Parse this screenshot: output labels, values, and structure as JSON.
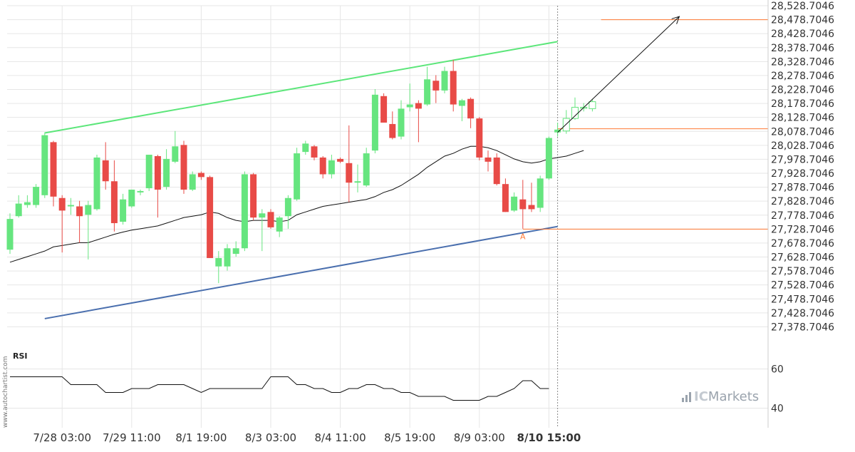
{
  "watermark": "www.autochartist.com",
  "brand": {
    "prefix": "IC",
    "name": "Markets"
  },
  "chart_data": {
    "type": "candlestick",
    "title": "",
    "ylabel": "",
    "xlabel": "",
    "price_ylim": [
      27328.7046,
      28528.7046
    ],
    "y_tick_labels": [
      "28,528.7046",
      "28,478.7046",
      "28,428.7046",
      "28,378.7046",
      "28,328.7046",
      "28,278.7046",
      "28,228.7046",
      "28,178.7046",
      "28,128.7046",
      "28,078.7046",
      "28,028.7046",
      "27,978.7046",
      "27,928.7046",
      "27,878.7046",
      "27,828.7046",
      "27,778.7046",
      "27,728.7046",
      "27,678.7046",
      "27,628.7046",
      "27,578.7046",
      "27,528.7046",
      "27,478.7046",
      "27,428.7046",
      "27,378.7046"
    ],
    "y_tick_values": [
      28528.7046,
      28478.7046,
      28428.7046,
      28378.7046,
      28328.7046,
      28278.7046,
      28228.7046,
      28178.7046,
      28128.7046,
      28078.7046,
      28028.7046,
      27978.7046,
      27928.7046,
      27878.7046,
      27828.7046,
      27778.7046,
      27728.7046,
      27678.7046,
      27628.7046,
      27578.7046,
      27528.7046,
      27478.7046,
      27428.7046,
      27378.7046
    ],
    "x_tick_labels": [
      {
        "label": "7/28 03:00",
        "index": 6,
        "bold": false
      },
      {
        "label": "7/29 11:00",
        "index": 14,
        "bold": false
      },
      {
        "label": "8/1 19:00",
        "index": 22,
        "bold": false
      },
      {
        "label": "8/3 03:00",
        "index": 30,
        "bold": false
      },
      {
        "label": "8/4 11:00",
        "index": 38,
        "bold": false
      },
      {
        "label": "8/5 19:00",
        "index": 46,
        "bold": false
      },
      {
        "label": "8/9 03:00",
        "index": 54,
        "bold": false
      },
      {
        "label": "8/10 15:00",
        "index": 62,
        "bold": true
      }
    ],
    "candles": [
      {
        "o": 27655,
        "h": 27785,
        "l": 27640,
        "c": 27765
      },
      {
        "o": 27775,
        "h": 27850,
        "l": 27770,
        "c": 27820
      },
      {
        "o": 27815,
        "h": 27850,
        "l": 27805,
        "c": 27825
      },
      {
        "o": 27815,
        "h": 27890,
        "l": 27805,
        "c": 27880
      },
      {
        "o": 27850,
        "h": 28075,
        "l": 27840,
        "c": 28065
      },
      {
        "o": 28040,
        "h": 28045,
        "l": 27810,
        "c": 27845
      },
      {
        "o": 27840,
        "h": 27850,
        "l": 27645,
        "c": 27795
      },
      {
        "o": 27810,
        "h": 27840,
        "l": 27780,
        "c": 27815
      },
      {
        "o": 27810,
        "h": 27830,
        "l": 27680,
        "c": 27775
      },
      {
        "o": 27780,
        "h": 27830,
        "l": 27620,
        "c": 27815
      },
      {
        "o": 27800,
        "h": 27995,
        "l": 27795,
        "c": 27985
      },
      {
        "o": 27975,
        "h": 28040,
        "l": 27870,
        "c": 27900
      },
      {
        "o": 27900,
        "h": 27975,
        "l": 27720,
        "c": 27750
      },
      {
        "o": 27755,
        "h": 27855,
        "l": 27745,
        "c": 27835
      },
      {
        "o": 27810,
        "h": 27870,
        "l": 27805,
        "c": 27870
      },
      {
        "o": 27860,
        "h": 27870,
        "l": 27850,
        "c": 27865
      },
      {
        "o": 27875,
        "h": 27995,
        "l": 27865,
        "c": 27995
      },
      {
        "o": 27990,
        "h": 27995,
        "l": 27770,
        "c": 27870
      },
      {
        "o": 27880,
        "h": 28015,
        "l": 27870,
        "c": 27980
      },
      {
        "o": 27970,
        "h": 28080,
        "l": 27965,
        "c": 28025
      },
      {
        "o": 28030,
        "h": 28045,
        "l": 27855,
        "c": 27870
      },
      {
        "o": 27870,
        "h": 27935,
        "l": 27865,
        "c": 27925
      },
      {
        "o": 27930,
        "h": 27935,
        "l": 27905,
        "c": 27915
      },
      {
        "o": 27915,
        "h": 27920,
        "l": 27625,
        "c": 27625
      },
      {
        "o": 27595,
        "h": 27650,
        "l": 27535,
        "c": 27625
      },
      {
        "o": 27595,
        "h": 27675,
        "l": 27580,
        "c": 27660
      },
      {
        "o": 27640,
        "h": 27685,
        "l": 27630,
        "c": 27660
      },
      {
        "o": 27660,
        "h": 27935,
        "l": 27650,
        "c": 27925
      },
      {
        "o": 27925,
        "h": 27930,
        "l": 27760,
        "c": 27770
      },
      {
        "o": 27770,
        "h": 27800,
        "l": 27650,
        "c": 27785
      },
      {
        "o": 27790,
        "h": 27800,
        "l": 27730,
        "c": 27735
      },
      {
        "o": 27720,
        "h": 27775,
        "l": 27700,
        "c": 27770
      },
      {
        "o": 27775,
        "h": 27850,
        "l": 27730,
        "c": 27840
      },
      {
        "o": 27835,
        "h": 28020,
        "l": 27830,
        "c": 28000
      },
      {
        "o": 28005,
        "h": 28045,
        "l": 27995,
        "c": 28035
      },
      {
        "o": 28025,
        "h": 28030,
        "l": 27975,
        "c": 27985
      },
      {
        "o": 27985,
        "h": 27990,
        "l": 27910,
        "c": 27925
      },
      {
        "o": 27925,
        "h": 27995,
        "l": 27910,
        "c": 27975
      },
      {
        "o": 27980,
        "h": 27985,
        "l": 27965,
        "c": 27970
      },
      {
        "o": 27965,
        "h": 28100,
        "l": 27825,
        "c": 27895
      },
      {
        "o": 27895,
        "h": 27960,
        "l": 27860,
        "c": 27900
      },
      {
        "o": 27885,
        "h": 28020,
        "l": 27880,
        "c": 28000
      },
      {
        "o": 28010,
        "h": 28230,
        "l": 28000,
        "c": 28210
      },
      {
        "o": 28205,
        "h": 28215,
        "l": 28110,
        "c": 28110
      },
      {
        "o": 28105,
        "h": 28150,
        "l": 28050,
        "c": 28055
      },
      {
        "o": 28060,
        "h": 28190,
        "l": 28050,
        "c": 28160
      },
      {
        "o": 28165,
        "h": 28250,
        "l": 28150,
        "c": 28175
      },
      {
        "o": 28180,
        "h": 28190,
        "l": 28040,
        "c": 28160
      },
      {
        "o": 28175,
        "h": 28310,
        "l": 28170,
        "c": 28265
      },
      {
        "o": 28260,
        "h": 28280,
        "l": 28180,
        "c": 28225
      },
      {
        "o": 28225,
        "h": 28310,
        "l": 28215,
        "c": 28295
      },
      {
        "o": 28295,
        "h": 28335,
        "l": 28150,
        "c": 28175
      },
      {
        "o": 28170,
        "h": 28195,
        "l": 28115,
        "c": 28190
      },
      {
        "o": 28195,
        "h": 28200,
        "l": 28090,
        "c": 28125
      },
      {
        "o": 28125,
        "h": 28130,
        "l": 27975,
        "c": 27985
      },
      {
        "o": 27985,
        "h": 28010,
        "l": 27935,
        "c": 27970
      },
      {
        "o": 27985,
        "h": 28000,
        "l": 27885,
        "c": 27890
      },
      {
        "o": 27890,
        "h": 27910,
        "l": 27790,
        "c": 27790
      },
      {
        "o": 27795,
        "h": 27860,
        "l": 27790,
        "c": 27845
      },
      {
        "o": 27835,
        "h": 27905,
        "l": 27730,
        "c": 27800
      },
      {
        "o": 27815,
        "h": 27895,
        "l": 27790,
        "c": 27800
      },
      {
        "o": 27805,
        "h": 27920,
        "l": 27790,
        "c": 27910
      },
      {
        "o": 27910,
        "h": 28060,
        "l": 27905,
        "c": 28055
      },
      {
        "o": 28075,
        "h": 28110,
        "l": 28060,
        "c": 28085
      },
      {
        "o": 28080,
        "h": 28155,
        "l": 28070,
        "c": 28125
      },
      {
        "o": 28125,
        "h": 28200,
        "l": 28120,
        "c": 28165
      },
      {
        "o": 28165,
        "h": 28180,
        "l": 28150,
        "c": 28165
      },
      {
        "o": 28160,
        "h": 28195,
        "l": 28150,
        "c": 28185
      }
    ],
    "moving_average": [
      27610,
      27620,
      27630,
      27640,
      27650,
      27665,
      27670,
      27675,
      27680,
      27680,
      27690,
      27700,
      27710,
      27718,
      27725,
      27730,
      27735,
      27740,
      27750,
      27760,
      27770,
      27775,
      27780,
      27790,
      27785,
      27770,
      27760,
      27755,
      27760,
      27760,
      27760,
      27755,
      27760,
      27780,
      27790,
      27800,
      27810,
      27815,
      27820,
      27825,
      27830,
      27835,
      27845,
      27860,
      27870,
      27885,
      27905,
      27925,
      27950,
      27970,
      27990,
      28000,
      28015,
      28025,
      28025,
      28020,
      28010,
      27995,
      27980,
      27970,
      27965,
      27970,
      27980,
      27985,
      27990,
      28000,
      28010
    ],
    "channel": {
      "resistance": {
        "x0": 4,
        "y0": 28073,
        "x1": 63,
        "y1": 28400,
        "color": "#5ce67a"
      },
      "support": {
        "x0": 4,
        "y0": 27408,
        "x1": 63,
        "y1": 27738,
        "color": "#4a6fae"
      }
    },
    "projection_arrow": {
      "x0": 63,
      "y0": 28075,
      "x1": 77,
      "y1": 28490
    },
    "levels": [
      {
        "value": 28478.7046,
        "start": 68
      },
      {
        "value": 28088,
        "start": 63
      },
      {
        "value": 27728.7046,
        "start": 59
      }
    ],
    "divider_index": 63,
    "point_label": {
      "text": "A",
      "index": 59,
      "value": 27713
    },
    "rsi": {
      "title": "RSI",
      "tick_labels": [
        "60",
        "40"
      ],
      "tick_values": [
        60,
        40
      ],
      "ylim": [
        30,
        70
      ],
      "values": [
        56,
        56,
        56,
        56,
        56,
        56,
        56,
        52,
        52,
        52,
        52,
        48,
        48,
        48,
        50,
        50,
        50,
        52,
        52,
        52,
        52,
        50,
        48,
        50,
        50,
        50,
        50,
        50,
        50,
        50,
        56,
        56,
        56,
        52,
        52,
        50,
        50,
        48,
        48,
        50,
        50,
        52,
        52,
        50,
        50,
        48,
        48,
        46,
        46,
        46,
        46,
        44,
        44,
        44,
        44,
        46,
        46,
        48,
        50,
        54,
        54,
        50,
        50
      ]
    },
    "colors": {
      "bull": "#66e57f",
      "bear": "#e84b47",
      "ma": "#111111",
      "level": "#ff7733",
      "grid": "#e6e6e6",
      "axis_bg": "#ffffff"
    }
  }
}
